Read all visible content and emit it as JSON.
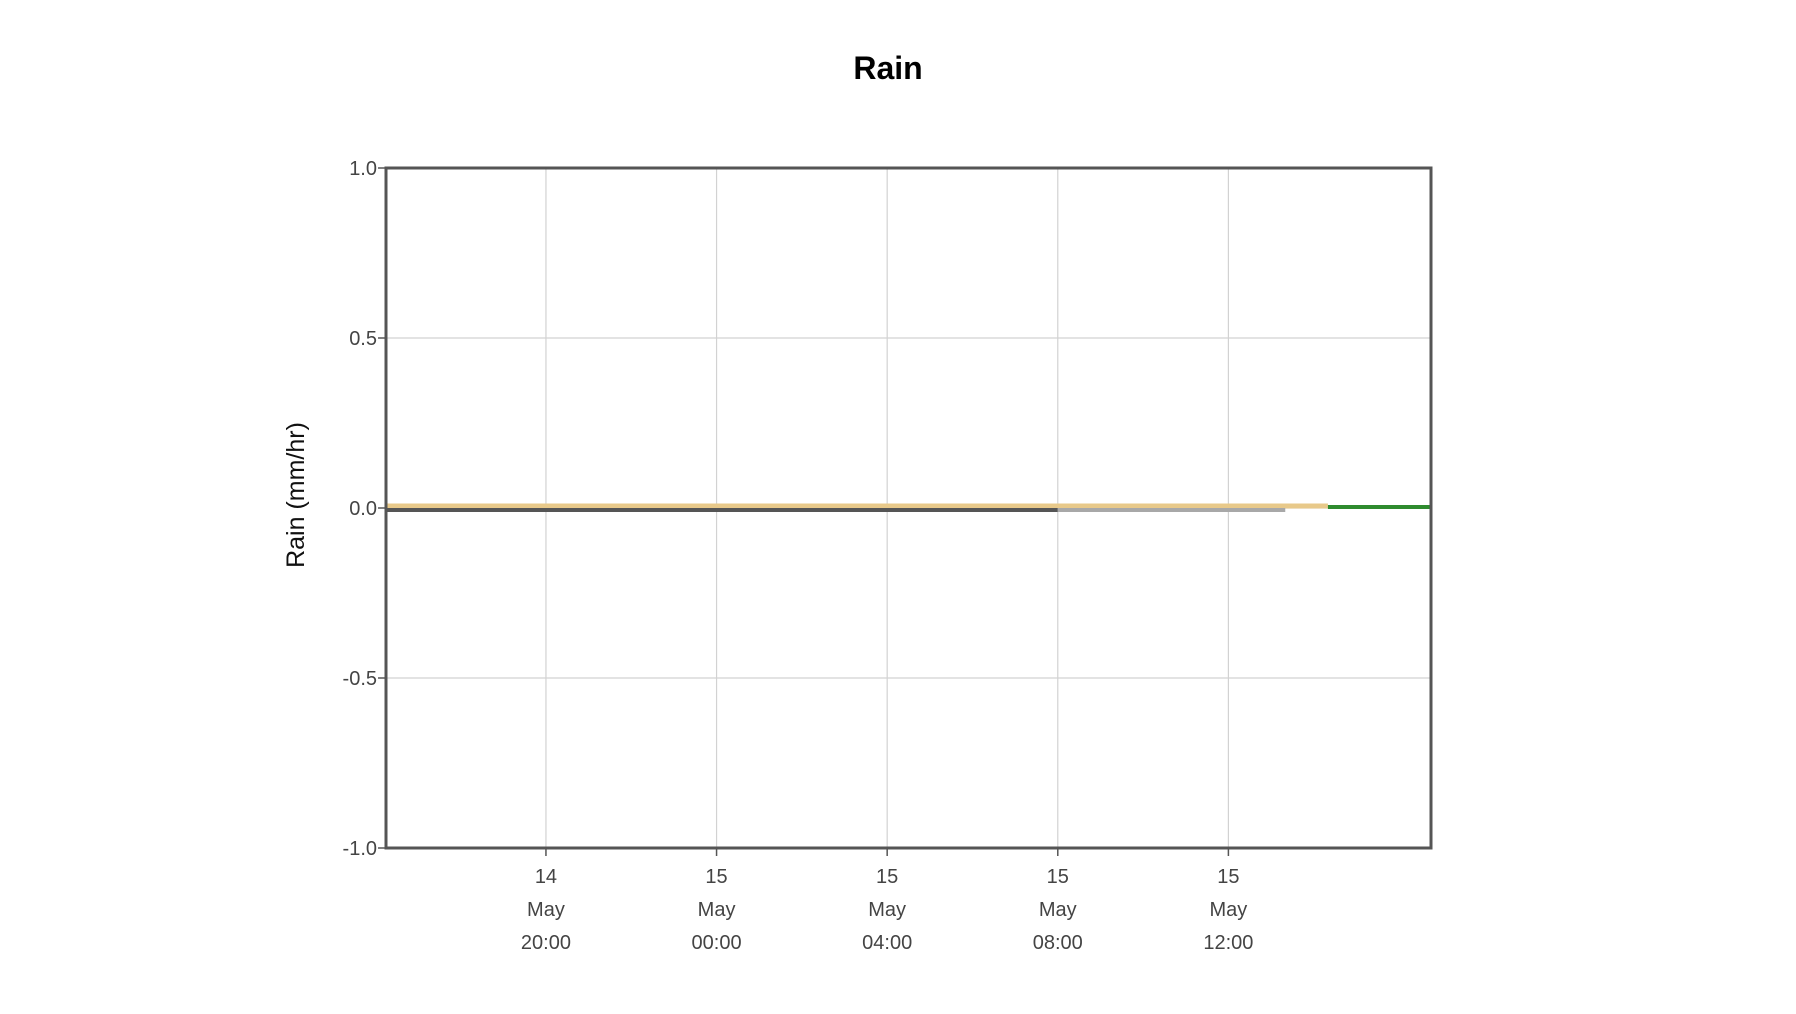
{
  "chart_data": {
    "type": "line",
    "title": "Rain",
    "xlabel": "",
    "ylabel": "Rain (mm/hr)",
    "ylim": [
      -1.0,
      1.0
    ],
    "xlim": [
      "2024-05-14T16:15",
      "2024-05-15T16:45"
    ],
    "y_ticks": [
      1.0,
      0.5,
      0.0,
      -0.5,
      -1.0
    ],
    "y_tick_labels": [
      "1.0",
      "0.5",
      "0.0",
      "-0.5",
      "-1.0"
    ],
    "x_ticks": [
      {
        "value": "2024-05-14T20:00",
        "label": [
          "14",
          "May",
          "20:00"
        ]
      },
      {
        "value": "2024-05-15T00:00",
        "label": [
          "15",
          "May",
          "00:00"
        ]
      },
      {
        "value": "2024-05-15T04:00",
        "label": [
          "15",
          "May",
          "04:00"
        ]
      },
      {
        "value": "2024-05-15T08:00",
        "label": [
          "15",
          "May",
          "08:00"
        ]
      },
      {
        "value": "2024-05-15T12:00",
        "label": [
          "15",
          "May",
          "12:00"
        ]
      }
    ],
    "grid": true,
    "series": [
      {
        "color": "#e8c98a",
        "x": [
          "2024-05-14T16:15",
          "2024-05-15T14:20"
        ],
        "y": [
          0.0,
          0.0
        ]
      },
      {
        "color": "#555555",
        "x": [
          "2024-05-14T16:15",
          "2024-05-15T08:00"
        ],
        "y": [
          0.0,
          0.0
        ]
      },
      {
        "color": "#a8a8a8",
        "x": [
          "2024-05-15T08:00",
          "2024-05-15T13:20"
        ],
        "y": [
          0.0,
          0.0
        ]
      },
      {
        "color": "#2e8b2e",
        "x": [
          "2024-05-15T14:20",
          "2024-05-15T16:45"
        ],
        "y": [
          0.0,
          0.0
        ]
      }
    ]
  }
}
